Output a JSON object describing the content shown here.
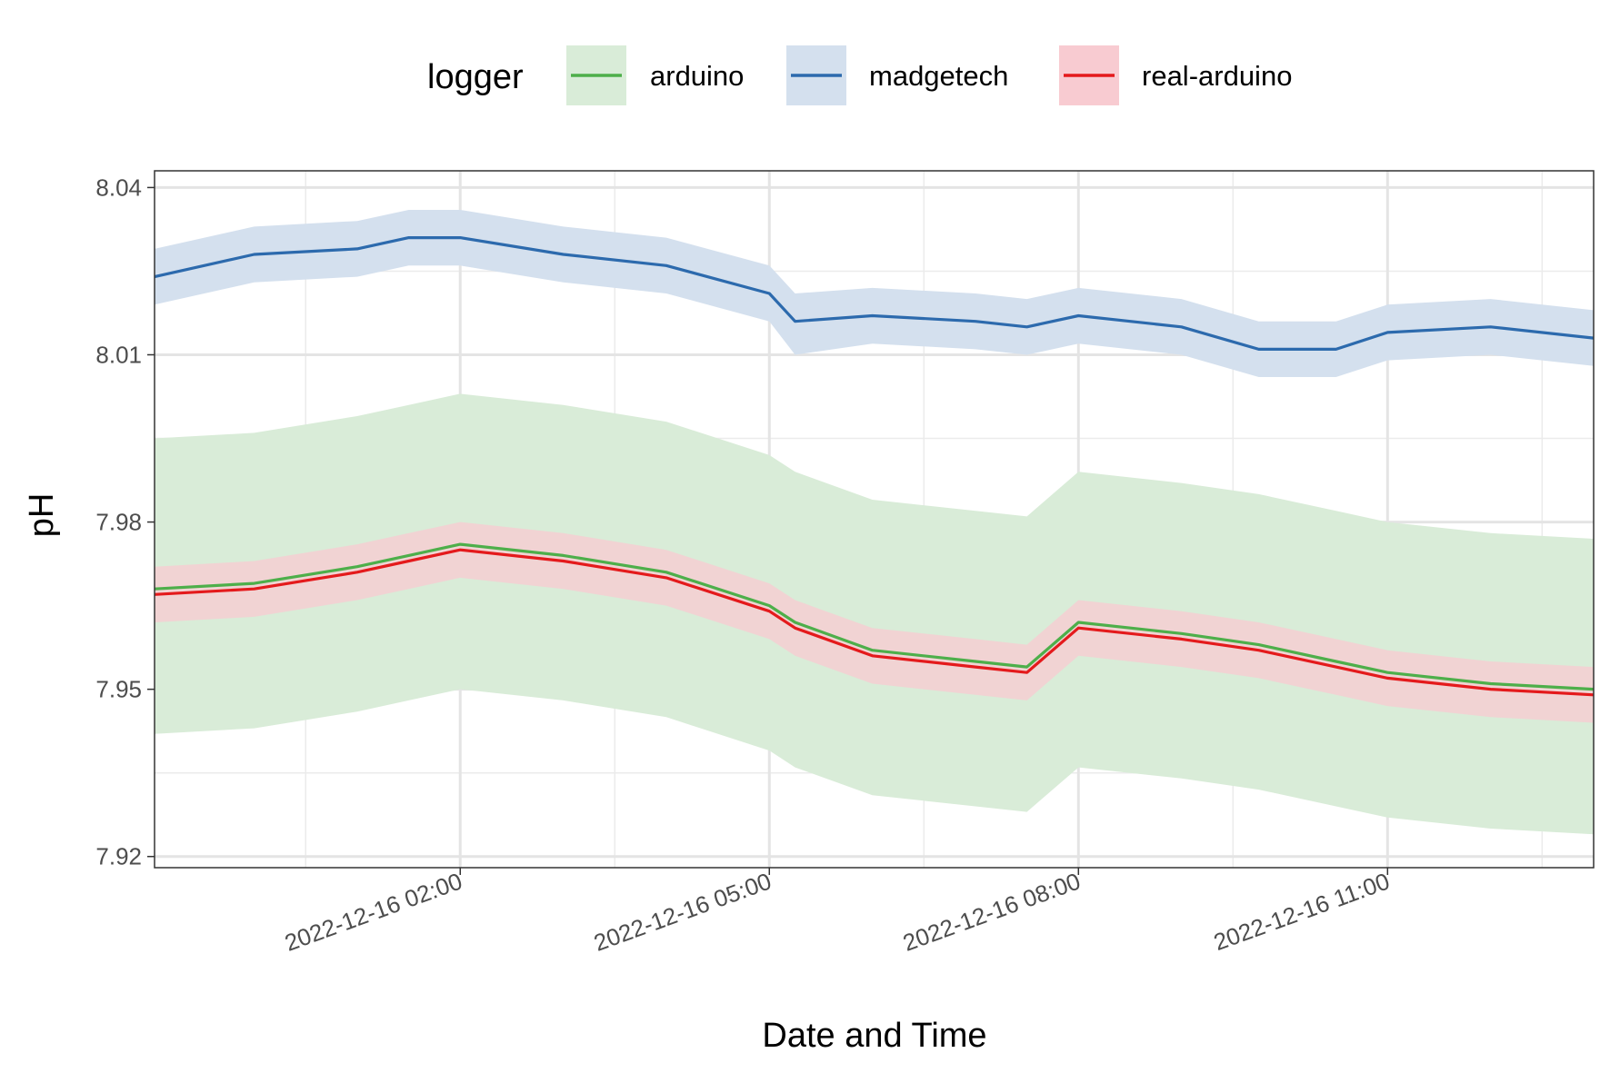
{
  "chart_data": {
    "type": "line",
    "xlabel": "Date and Time",
    "ylabel": "pH",
    "x_tick_labels": [
      "2022-12-16 02:00",
      "2022-12-16 05:00",
      "2022-12-16 08:00",
      "2022-12-16 11:00"
    ],
    "x_ticks": [
      "2022-12-16T02:00",
      "2022-12-16T05:00",
      "2022-12-16T08:00",
      "2022-12-16T11:00"
    ],
    "xlim": [
      "2022-12-15T23:02",
      "2022-12-16T13:00"
    ],
    "y_tick_labels": [
      "7.92",
      "7.95",
      "7.98",
      "8.01",
      "8.04"
    ],
    "y_ticks": [
      7.92,
      7.95,
      7.98,
      8.01,
      8.04
    ],
    "ylim": [
      7.918,
      8.043
    ],
    "grid": true,
    "legend": {
      "title": "logger",
      "position": "top"
    },
    "x": [
      "2022-12-15T23:00",
      "2022-12-16T00:00",
      "2022-12-16T01:00",
      "2022-12-16T01:30",
      "2022-12-16T02:00",
      "2022-12-16T03:00",
      "2022-12-16T04:00",
      "2022-12-16T05:00",
      "2022-12-16T05:15",
      "2022-12-16T06:00",
      "2022-12-16T07:00",
      "2022-12-16T07:30",
      "2022-12-16T08:00",
      "2022-12-16T09:00",
      "2022-12-16T09:45",
      "2022-12-16T10:30",
      "2022-12-16T11:00",
      "2022-12-16T12:00",
      "2022-12-16T13:00"
    ],
    "series": [
      {
        "name": "arduino",
        "color": "#4daf4a",
        "fill": "#d9ecd8",
        "values": [
          7.968,
          7.969,
          7.972,
          7.974,
          7.976,
          7.974,
          7.971,
          7.965,
          7.962,
          7.957,
          7.955,
          7.954,
          7.962,
          7.96,
          7.958,
          7.955,
          7.953,
          7.951,
          7.95
        ],
        "lower": [
          7.942,
          7.943,
          7.946,
          7.948,
          7.95,
          7.948,
          7.945,
          7.939,
          7.936,
          7.931,
          7.929,
          7.928,
          7.936,
          7.934,
          7.932,
          7.929,
          7.927,
          7.925,
          7.924
        ],
        "upper": [
          7.995,
          7.996,
          7.999,
          8.001,
          8.003,
          8.001,
          7.998,
          7.992,
          7.989,
          7.984,
          7.982,
          7.981,
          7.989,
          7.987,
          7.985,
          7.982,
          7.98,
          7.978,
          7.977
        ]
      },
      {
        "name": "madgetech",
        "color": "#2c6aad",
        "fill": "#d4e0ee",
        "values": [
          8.024,
          8.028,
          8.029,
          8.031,
          8.031,
          8.028,
          8.026,
          8.021,
          8.016,
          8.017,
          8.016,
          8.015,
          8.017,
          8.015,
          8.011,
          8.011,
          8.014,
          8.015,
          8.013
        ],
        "lower": [
          8.019,
          8.023,
          8.024,
          8.026,
          8.026,
          8.023,
          8.021,
          8.016,
          8.01,
          8.012,
          8.011,
          8.01,
          8.012,
          8.01,
          8.006,
          8.006,
          8.009,
          8.01,
          8.008
        ],
        "upper": [
          8.029,
          8.033,
          8.034,
          8.036,
          8.036,
          8.033,
          8.031,
          8.026,
          8.021,
          8.022,
          8.021,
          8.02,
          8.022,
          8.02,
          8.016,
          8.016,
          8.019,
          8.02,
          8.018
        ]
      },
      {
        "name": "real-arduino",
        "color": "#e41a1c",
        "fill": "#f8cbd1",
        "values": [
          7.967,
          7.968,
          7.971,
          7.973,
          7.975,
          7.973,
          7.97,
          7.964,
          7.961,
          7.956,
          7.954,
          7.953,
          7.961,
          7.959,
          7.957,
          7.954,
          7.952,
          7.95,
          7.949
        ],
        "lower": [
          7.962,
          7.963,
          7.966,
          7.968,
          7.97,
          7.968,
          7.965,
          7.959,
          7.956,
          7.951,
          7.949,
          7.948,
          7.956,
          7.954,
          7.952,
          7.949,
          7.947,
          7.945,
          7.944
        ],
        "upper": [
          7.972,
          7.973,
          7.976,
          7.978,
          7.98,
          7.978,
          7.975,
          7.969,
          7.966,
          7.961,
          7.959,
          7.958,
          7.966,
          7.964,
          7.962,
          7.959,
          7.957,
          7.955,
          7.954
        ]
      }
    ]
  }
}
